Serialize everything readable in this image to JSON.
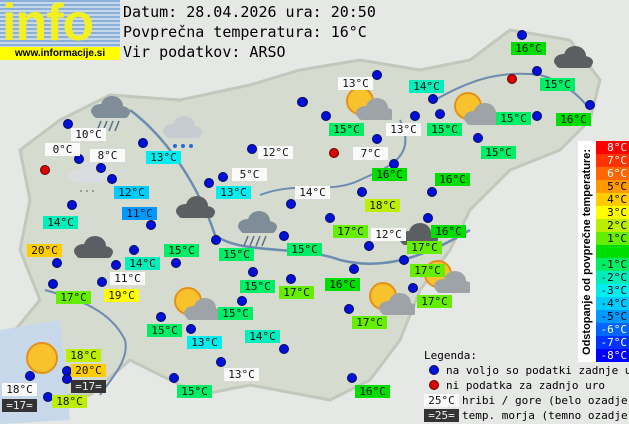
{
  "logo": {
    "word": "info",
    "url": "www.informacije.si"
  },
  "header": {
    "date_line": "Datum: 28.04.2026 ura: 20:50",
    "avg_line": "Povprečna temperatura: 16°C",
    "source_line": "Vir podatkov: ARSO"
  },
  "stations": [
    {
      "t": "16°C",
      "c": "t16"
    },
    {
      "t": "13°C",
      "c": "w"
    },
    {
      "t": "14°C",
      "c": "t14"
    },
    {
      "t": "15°C",
      "c": "t15"
    },
    {
      "t": "15°C",
      "c": "t15"
    },
    {
      "t": "13°C",
      "c": "w"
    },
    {
      "t": "15°C",
      "c": "t15"
    },
    {
      "t": "15°C",
      "c": "t15"
    },
    {
      "t": "16°C",
      "c": "t16"
    },
    {
      "t": "7°C",
      "c": "w"
    },
    {
      "t": "15°C",
      "c": "t15"
    },
    {
      "t": "16°C",
      "c": "t16"
    },
    {
      "t": "16°C",
      "c": "t16"
    },
    {
      "t": "14°C",
      "c": "w"
    },
    {
      "t": "18°C",
      "c": "t18"
    },
    {
      "t": "17°C",
      "c": "t17"
    },
    {
      "t": "12°C",
      "c": "w"
    },
    {
      "t": "16°C",
      "c": "t16"
    },
    {
      "t": "17°C",
      "c": "t17"
    },
    {
      "t": "17°C",
      "c": "t17"
    },
    {
      "t": "10°C",
      "c": "w"
    },
    {
      "t": "0°C",
      "c": "w"
    },
    {
      "t": "8°C",
      "c": "w"
    },
    {
      "t": "13°C",
      "c": "t13"
    },
    {
      "t": "12°C",
      "c": "w"
    },
    {
      "t": "5°C",
      "c": "w"
    },
    {
      "t": "12°C",
      "c": "t12"
    },
    {
      "t": "13°C",
      "c": "t13"
    },
    {
      "t": "11°C",
      "c": "t11"
    },
    {
      "t": "14°C",
      "c": "t14"
    },
    {
      "t": "20°C",
      "c": "t20"
    },
    {
      "t": "14°C",
      "c": "t14"
    },
    {
      "t": "11°C",
      "c": "w"
    },
    {
      "t": "15°C",
      "c": "t15"
    },
    {
      "t": "15°C",
      "c": "t15"
    },
    {
      "t": "15°C",
      "c": "t15"
    },
    {
      "t": "15°C",
      "c": "t15"
    },
    {
      "t": "17°C",
      "c": "t17"
    },
    {
      "t": "17°C",
      "c": "t17"
    },
    {
      "t": "19°C",
      "c": "t19"
    },
    {
      "t": "16°C",
      "c": "t16"
    },
    {
      "t": "17°C",
      "c": "t17"
    },
    {
      "t": "17°C",
      "c": "t17"
    },
    {
      "t": "15°C",
      "c": "t15"
    },
    {
      "t": "15°C",
      "c": "t15"
    },
    {
      "t": "13°C",
      "c": "t13"
    },
    {
      "t": "14°C",
      "c": "t14"
    },
    {
      "t": "13°C",
      "c": "w"
    },
    {
      "t": "15°C",
      "c": "t15"
    },
    {
      "t": "16°C",
      "c": "t16"
    },
    {
      "t": "18°C",
      "c": "t18"
    },
    {
      "t": "20°C",
      "c": "t20"
    },
    {
      "t": "=17=",
      "c": "dk"
    },
    {
      "t": "18°C",
      "c": "w"
    },
    {
      "t": "=17=",
      "c": "dk"
    },
    {
      "t": "18°C",
      "c": "t18"
    }
  ],
  "scale": {
    "title": "Odstopanje od povprečne temperature:",
    "cells": [
      {
        "t": "8°C",
        "bg": "#ff0000",
        "fg": "#fff"
      },
      {
        "t": "7°C",
        "bg": "#ff3300",
        "fg": "#fff"
      },
      {
        "t": "6°C",
        "bg": "#ff6600",
        "fg": "#fff"
      },
      {
        "t": "5°C",
        "bg": "#ff9900",
        "fg": "#000"
      },
      {
        "t": "4°C",
        "bg": "#ffcc00",
        "fg": "#000"
      },
      {
        "t": "3°C",
        "bg": "#ffff00",
        "fg": "#000"
      },
      {
        "t": "2°C",
        "bg": "#bbee00",
        "fg": "#000"
      },
      {
        "t": "1°C",
        "bg": "#66ee00",
        "fg": "#000"
      },
      {
        "t": "",
        "bg": "#00dd00",
        "fg": "#000"
      },
      {
        "t": "-1°C",
        "bg": "#00ee66",
        "fg": "#000"
      },
      {
        "t": "-2°C",
        "bg": "#00eebb",
        "fg": "#000"
      },
      {
        "t": "-3°C",
        "bg": "#00eeee",
        "fg": "#000"
      },
      {
        "t": "-4°C",
        "bg": "#00ccff",
        "fg": "#000"
      },
      {
        "t": "-5°C",
        "bg": "#0099ff",
        "fg": "#000"
      },
      {
        "t": "-6°C",
        "bg": "#0066ff",
        "fg": "#fff"
      },
      {
        "t": "-7°C",
        "bg": "#0033ff",
        "fg": "#fff"
      },
      {
        "t": "-8°C",
        "bg": "#0000ff",
        "fg": "#fff"
      }
    ]
  },
  "legend": {
    "title": "Legenda:",
    "blue_dot": "na voljo so podatki zadnje ure",
    "red_dot": "ni podatka za zadnjo uro",
    "mountain_sample": "25°C",
    "mountain_text": "hribi / gore (belo ozadje)",
    "sea_sample": "=25=",
    "sea_text": "temp. morja (temno ozadje)"
  },
  "colors": {
    "t11": "#0099ff",
    "t12": "#00ccff",
    "t13": "#00eeee",
    "t14": "#00eebb",
    "t15": "#00ee66",
    "t16": "#00dd00",
    "t17": "#66ee00",
    "t18": "#bbee00",
    "t19": "#ffff00",
    "t20": "#ffcc00"
  },
  "icons": [
    "rain-cloud",
    "light-rain-cloud",
    "drizzle-cloud",
    "dark-cloud",
    "rain-cloud",
    "dark-cloud",
    "sun-cloud",
    "sun-cloud",
    "sun-cloud",
    "dark-cloud",
    "sun-cloud",
    "sun-cloud",
    "sun",
    "dark-cloud"
  ]
}
